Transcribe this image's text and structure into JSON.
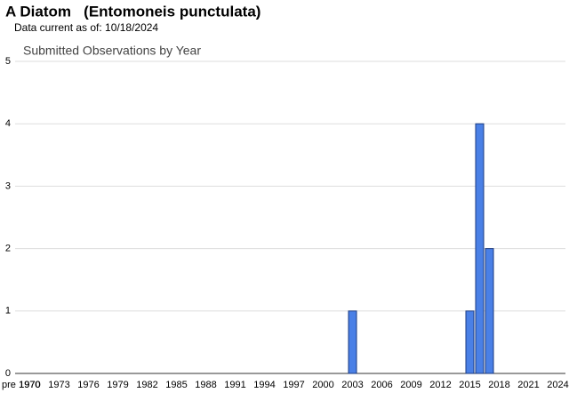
{
  "header": {
    "title": "A Diatom   (Entomoneis punctulata)",
    "subtitle": "Data current as of: 10/18/2024"
  },
  "chart_data": {
    "type": "bar",
    "title": "Submitted Observations by Year",
    "categories": [
      "pre 1970",
      "1970",
      null,
      null,
      "1973",
      null,
      null,
      "1976",
      null,
      null,
      "1979",
      null,
      null,
      "1982",
      null,
      null,
      "1985",
      null,
      null,
      "1988",
      null,
      null,
      "1991",
      null,
      null,
      "1994",
      null,
      null,
      "1997",
      null,
      null,
      "2000",
      null,
      null,
      "2003",
      null,
      null,
      "2006",
      null,
      null,
      "2009",
      null,
      null,
      "2012",
      null,
      null,
      "2015",
      null,
      null,
      "2018",
      null,
      null,
      "2021",
      null,
      null,
      "2024"
    ],
    "values": [
      0,
      0,
      0,
      0,
      0,
      0,
      0,
      0,
      0,
      0,
      0,
      0,
      0,
      0,
      0,
      0,
      0,
      0,
      0,
      0,
      0,
      0,
      0,
      0,
      0,
      0,
      0,
      0,
      0,
      0,
      0,
      0,
      0,
      0,
      1,
      0,
      0,
      0,
      0,
      0,
      0,
      0,
      0,
      0,
      0,
      0,
      1,
      4,
      2,
      0,
      0,
      0,
      0,
      0,
      0,
      0
    ],
    "color": "#4a80e6",
    "ylim": [
      0,
      5
    ],
    "yticks": [
      0,
      1,
      2,
      3,
      4,
      5
    ],
    "grid": true
  }
}
